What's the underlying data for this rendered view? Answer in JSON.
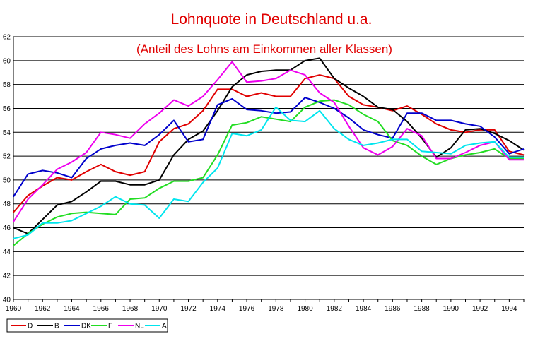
{
  "chart_data": {
    "type": "line",
    "title": "Lohnquote in Deutschland u.a.",
    "subtitle": "(Anteil des Lohns am Einkommen aller Klassen)",
    "xlabel": "",
    "ylabel": "",
    "xlim": [
      1960,
      1995
    ],
    "ylim": [
      40,
      62
    ],
    "x_ticks": [
      1960,
      1962,
      1964,
      1966,
      1968,
      1970,
      1972,
      1974,
      1976,
      1978,
      1980,
      1982,
      1984,
      1986,
      1988,
      1990,
      1992,
      1994
    ],
    "y_ticks": [
      40,
      42,
      44,
      46,
      48,
      50,
      52,
      54,
      56,
      58,
      60,
      62
    ],
    "grid": "horizontal",
    "legend_position": "bottom-left",
    "x": [
      1960,
      1961,
      1962,
      1963,
      1964,
      1965,
      1966,
      1967,
      1968,
      1969,
      1970,
      1971,
      1972,
      1973,
      1974,
      1975,
      1976,
      1977,
      1978,
      1979,
      1980,
      1981,
      1982,
      1983,
      1984,
      1985,
      1986,
      1987,
      1988,
      1989,
      1990,
      1991,
      1992,
      1993,
      1994,
      1995
    ],
    "series": [
      {
        "name": "D",
        "color": "#e00000",
        "values": [
          47.3,
          48.7,
          49.5,
          50.2,
          50.0,
          50.7,
          51.3,
          50.7,
          50.4,
          50.7,
          53.2,
          54.3,
          54.7,
          55.8,
          57.6,
          57.6,
          57.0,
          57.3,
          57.0,
          57.0,
          58.5,
          58.8,
          58.5,
          57.0,
          56.3,
          56.1,
          55.8,
          56.2,
          55.5,
          54.7,
          54.2,
          54.0,
          54.2,
          54.2,
          52.4,
          52.1
        ]
      },
      {
        "name": "B",
        "color": "#000000",
        "values": [
          46.0,
          45.5,
          46.7,
          47.9,
          48.2,
          49.0,
          49.9,
          49.9,
          49.6,
          49.6,
          50.0,
          52.1,
          53.4,
          54.1,
          55.8,
          57.8,
          58.8,
          59.1,
          59.2,
          59.2,
          60.0,
          60.2,
          58.5,
          57.7,
          57.0,
          56.1,
          55.9,
          54.9,
          53.5,
          51.9,
          52.7,
          54.2,
          54.3,
          53.9,
          53.3,
          52.5
        ]
      },
      {
        "name": "DK",
        "color": "#0000cc",
        "values": [
          48.6,
          50.5,
          50.8,
          50.6,
          50.2,
          51.8,
          52.6,
          52.9,
          53.1,
          52.9,
          53.8,
          55.0,
          53.2,
          53.4,
          56.3,
          56.8,
          55.9,
          55.8,
          55.6,
          55.7,
          56.9,
          56.5,
          56.0,
          55.2,
          54.2,
          53.8,
          53.5,
          55.6,
          55.6,
          55.0,
          55.0,
          54.7,
          54.5,
          53.6,
          52.2,
          52.6
        ]
      },
      {
        "name": "F",
        "color": "#22dd22",
        "values": [
          44.5,
          45.5,
          46.3,
          46.9,
          47.2,
          47.3,
          47.2,
          47.1,
          48.4,
          48.5,
          49.3,
          49.9,
          49.9,
          50.2,
          52.1,
          54.6,
          54.8,
          55.3,
          55.1,
          54.9,
          56.1,
          56.6,
          56.7,
          56.3,
          55.5,
          54.9,
          53.3,
          52.9,
          52.0,
          51.3,
          51.8,
          52.1,
          52.3,
          52.6,
          51.8,
          51.8
        ]
      },
      {
        "name": "NL",
        "color": "#ee00ee",
        "values": [
          46.5,
          48.4,
          49.6,
          50.9,
          51.5,
          52.3,
          54.0,
          53.8,
          53.5,
          54.7,
          55.6,
          56.7,
          56.2,
          57.0,
          58.4,
          59.9,
          58.2,
          58.3,
          58.5,
          59.2,
          58.8,
          57.3,
          56.5,
          54.5,
          52.7,
          52.1,
          52.8,
          54.3,
          53.7,
          51.8,
          51.8,
          52.3,
          52.9,
          53.2,
          51.7,
          51.7
        ]
      },
      {
        "name": "A",
        "color": "#00e5ee",
        "values": [
          45.1,
          45.4,
          46.4,
          46.4,
          46.6,
          47.2,
          47.8,
          48.6,
          48.0,
          47.9,
          46.8,
          48.4,
          48.2,
          49.8,
          51.0,
          53.9,
          53.7,
          54.2,
          56.1,
          55.0,
          54.9,
          55.8,
          54.3,
          53.4,
          52.9,
          53.1,
          53.4,
          53.4,
          52.4,
          52.3,
          52.2,
          52.9,
          53.1,
          53.2,
          51.9,
          51.9
        ]
      }
    ]
  }
}
